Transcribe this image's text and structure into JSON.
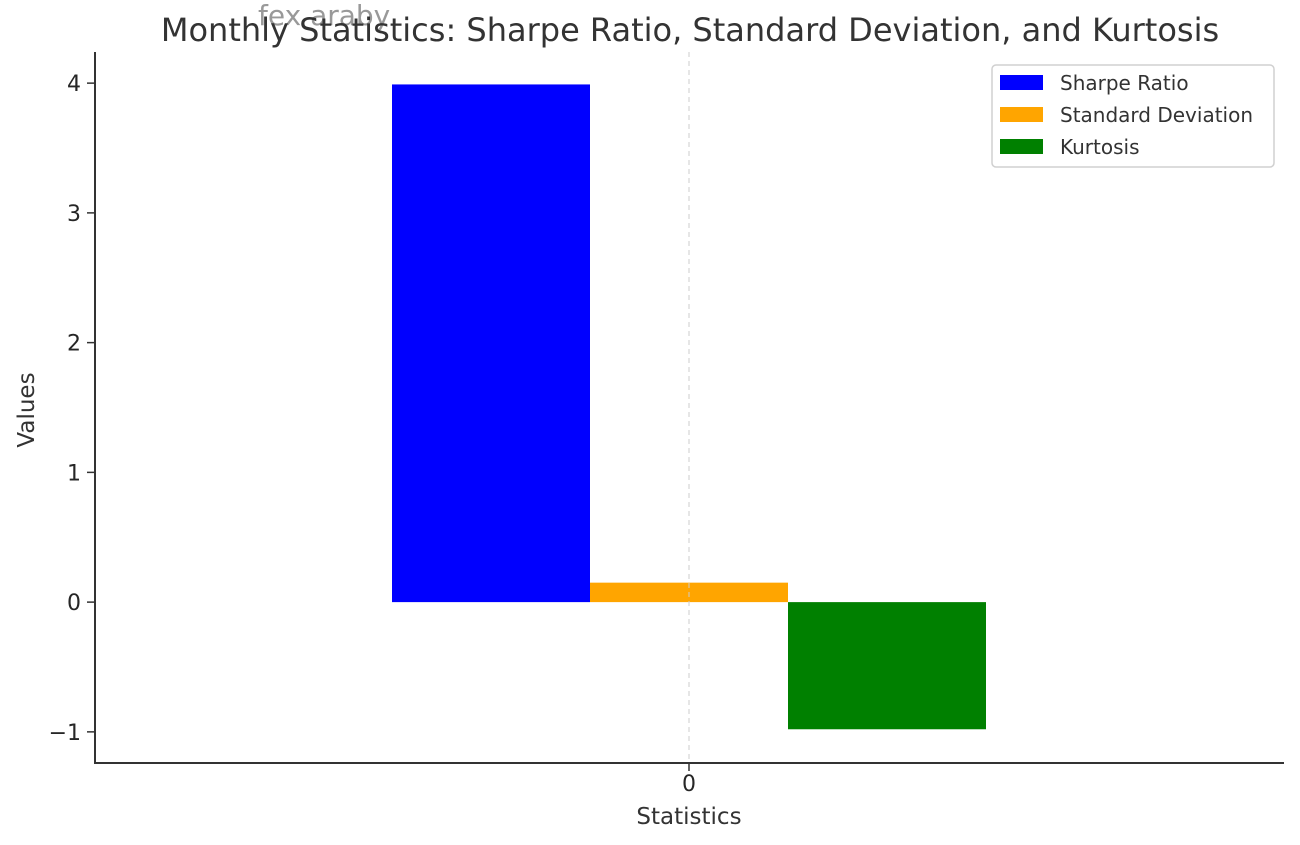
{
  "watermark": "fex araby",
  "chart_data": {
    "type": "bar",
    "title": "Monthly Statistics: Sharpe Ratio, Standard Deviation, and Kurtosis",
    "xlabel": "Statistics",
    "ylabel": "Values",
    "categories": [
      "0"
    ],
    "series": [
      {
        "name": "Sharpe Ratio",
        "values": [
          3.99
        ],
        "color": "#0000ff"
      },
      {
        "name": "Standard Deviation",
        "values": [
          0.15
        ],
        "color": "#ffa500"
      },
      {
        "name": "Kurtosis",
        "values": [
          -0.98
        ],
        "color": "#008000"
      }
    ],
    "ylim": [
      -1.24,
      4.24
    ],
    "yticks": [
      -1,
      0,
      1,
      2,
      3,
      4
    ],
    "ytick_labels": [
      "−1",
      "0",
      "1",
      "2",
      "3",
      "4"
    ],
    "grid": "vertical dashed at category",
    "legend_position": "top-right"
  }
}
